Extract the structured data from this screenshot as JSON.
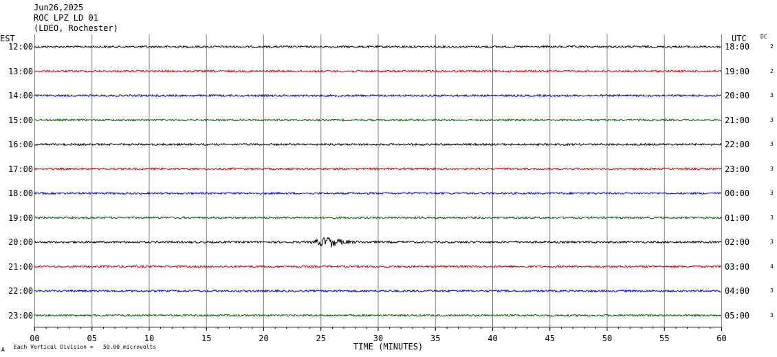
{
  "header": {
    "date": "Jun26,2025",
    "station": "ROC LPZ LD 01",
    "network": "(LDEO, Rochester)"
  },
  "left_label": "EST",
  "right_label": "UTC",
  "dc_label": "DC",
  "footer": {
    "scale_text": "Each Vertical Division =   50.00 microvolts",
    "corner_mark": "A"
  },
  "colors": {
    "trace_cycle": [
      "#000000",
      "#cc0000",
      "#0000cc",
      "#006600"
    ],
    "grid": "#808080",
    "axis": "#000000"
  },
  "chart_data": {
    "type": "line",
    "subtype": "helicorder",
    "xlabel": "TIME (MINUTES)",
    "xlim": [
      0,
      60
    ],
    "x_ticks": [
      "00",
      "05",
      "10",
      "15",
      "20",
      "25",
      "30",
      "35",
      "40",
      "45",
      "50",
      "55",
      "60"
    ],
    "grid": true,
    "rows": [
      {
        "est": "12:00",
        "utc": "18:00",
        "dc": "2",
        "amplitude": "low",
        "events": []
      },
      {
        "est": "13:00",
        "utc": "19:00",
        "dc": "2",
        "amplitude": "low",
        "events": []
      },
      {
        "est": "14:00",
        "utc": "20:00",
        "dc": "3",
        "amplitude": "low",
        "events": []
      },
      {
        "est": "15:00",
        "utc": "21:00",
        "dc": "3",
        "amplitude": "low",
        "events": []
      },
      {
        "est": "16:00",
        "utc": "22:00",
        "dc": "3",
        "amplitude": "low",
        "events": []
      },
      {
        "est": "17:00",
        "utc": "23:00",
        "dc": "3",
        "amplitude": "low",
        "events": []
      },
      {
        "est": "18:00",
        "utc": "00:00",
        "dc": "3",
        "amplitude": "low",
        "events": []
      },
      {
        "est": "19:00",
        "utc": "01:00",
        "dc": "3",
        "amplitude": "low",
        "events": []
      },
      {
        "est": "20:00",
        "utc": "02:00",
        "dc": "3",
        "amplitude": "low",
        "events": [
          {
            "start_min": 24,
            "peak_min": 25.8,
            "end_min": 30
          }
        ]
      },
      {
        "est": "21:00",
        "utc": "03:00",
        "dc": "4",
        "amplitude": "low",
        "events": []
      },
      {
        "est": "22:00",
        "utc": "04:00",
        "dc": "3",
        "amplitude": "low",
        "events": []
      },
      {
        "est": "23:00",
        "utc": "05:00",
        "dc": "3",
        "amplitude": "low",
        "events": []
      }
    ]
  }
}
